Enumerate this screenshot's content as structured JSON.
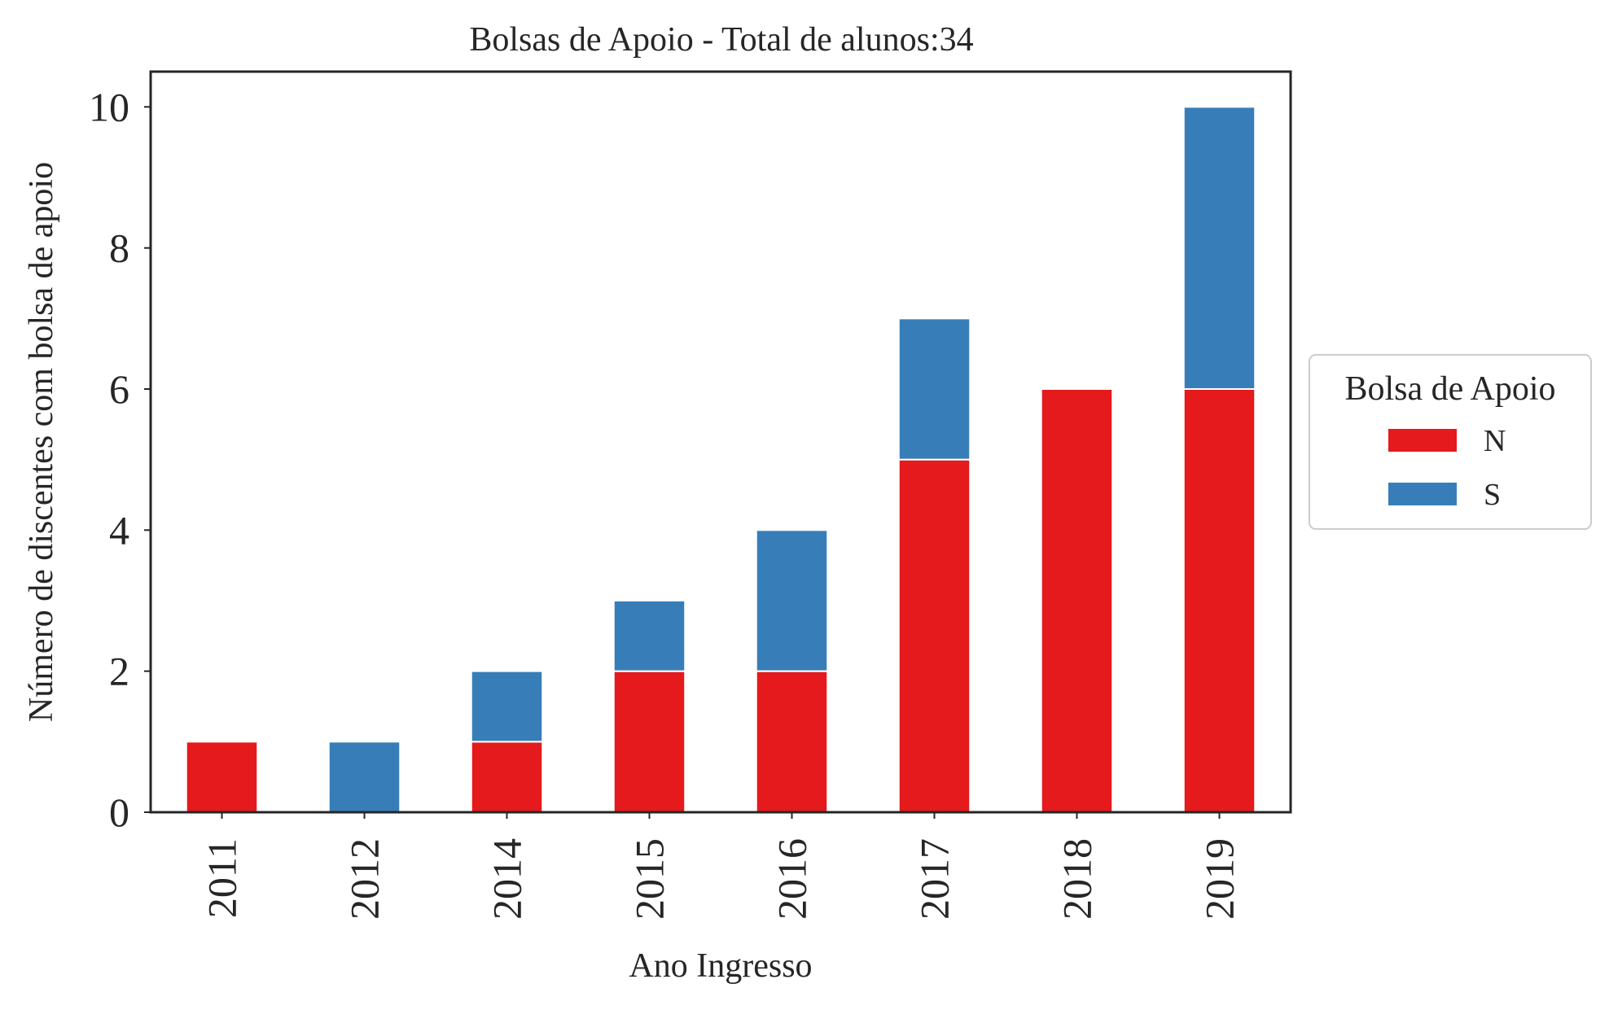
{
  "chart_data": {
    "type": "bar",
    "stacked": true,
    "title": "Bolsas de Apoio - Total de alunos:34",
    "xlabel": "Ano Ingresso",
    "ylabel": "Número de discentes com bolsa de apoio",
    "categories": [
      "2011",
      "2012",
      "2014",
      "2015",
      "2016",
      "2017",
      "2018",
      "2019"
    ],
    "series": [
      {
        "name": "N",
        "color": "#e41a1c",
        "values": [
          1,
          0,
          1,
          2,
          2,
          5,
          6,
          6
        ]
      },
      {
        "name": "S",
        "color": "#377eb8",
        "values": [
          0,
          1,
          1,
          1,
          2,
          2,
          0,
          4
        ]
      }
    ],
    "ylim": [
      0,
      10.5
    ],
    "yticks": [
      "0",
      "2",
      "4",
      "6",
      "8",
      "10"
    ],
    "grid": false,
    "legend": {
      "title": "Bolsa de Apoio",
      "placement": "right-center-outside"
    }
  }
}
